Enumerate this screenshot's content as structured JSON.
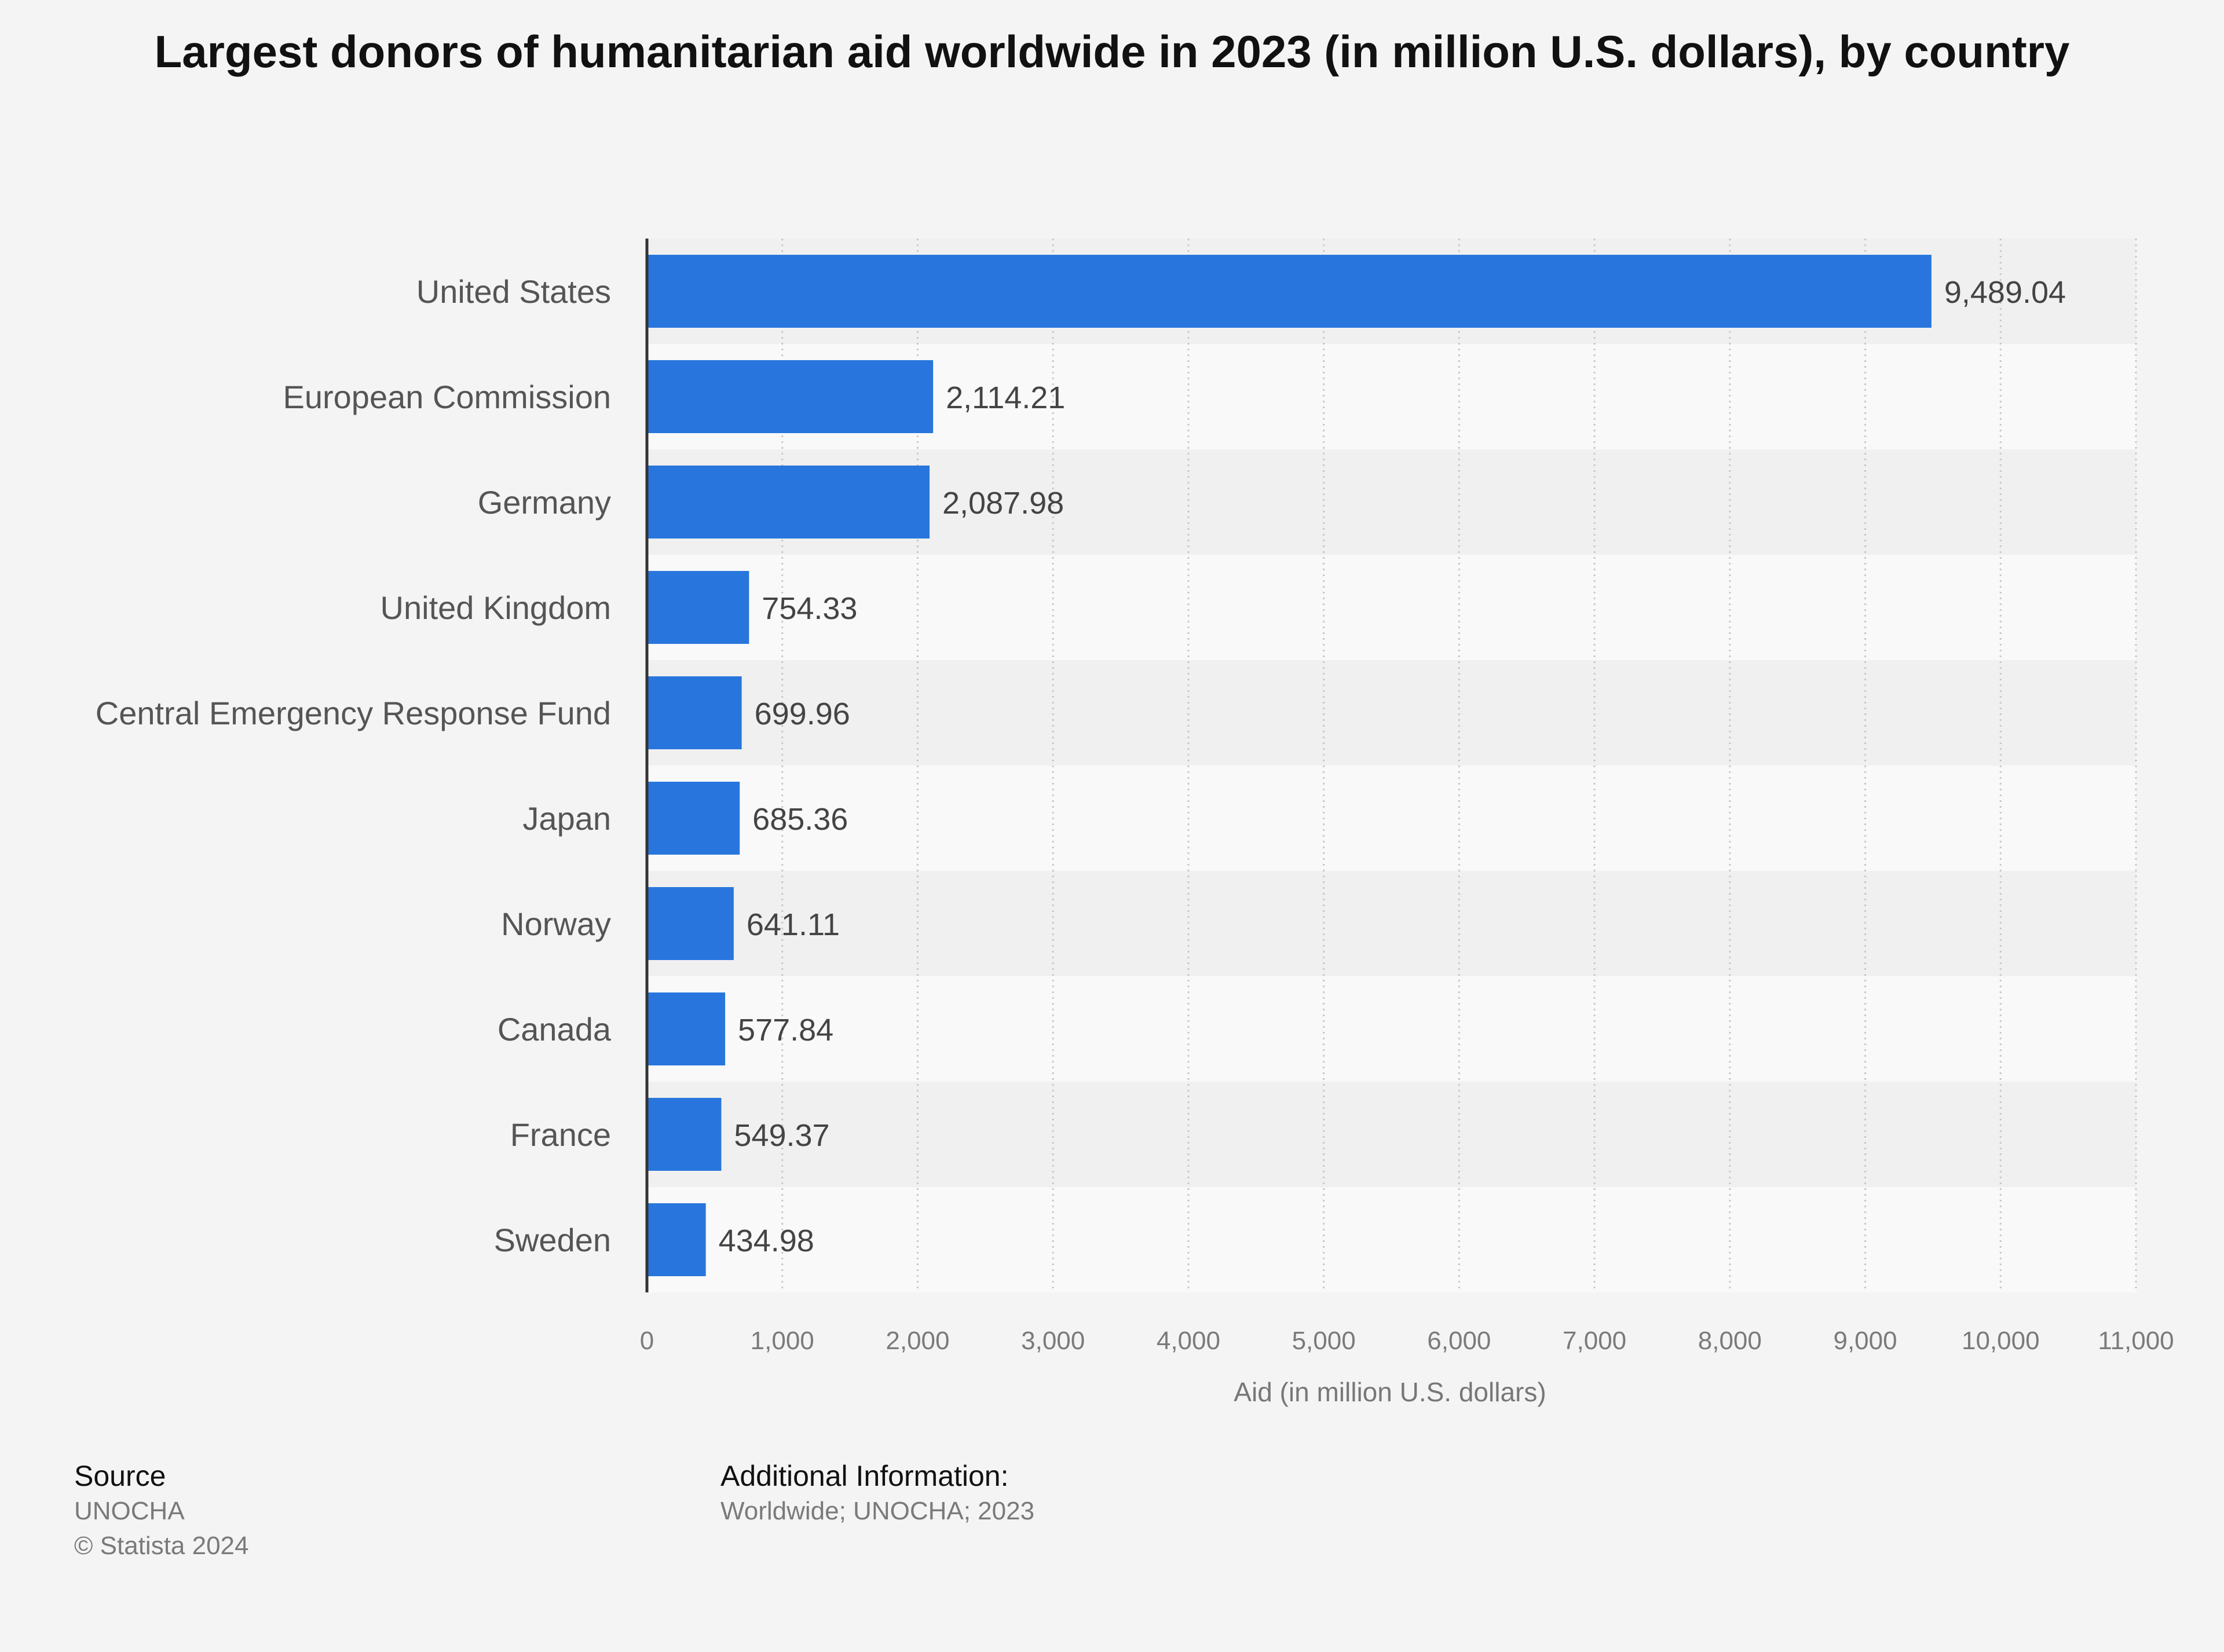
{
  "chart_data": {
    "type": "bar",
    "orientation": "horizontal",
    "title": "Largest donors of humanitarian aid worldwide in 2023 (in million U.S. dollars), by country",
    "categories": [
      "United States",
      "European Commission",
      "Germany",
      "United Kingdom",
      "Central Emergency Response Fund",
      "Japan",
      "Norway",
      "Canada",
      "France",
      "Sweden"
    ],
    "values": [
      9489.04,
      2114.21,
      2087.98,
      754.33,
      699.96,
      685.36,
      641.11,
      577.84,
      549.37,
      434.98
    ],
    "value_labels": [
      "9,489.04",
      "2,114.21",
      "2,087.98",
      "754.33",
      "699.96",
      "685.36",
      "641.11",
      "577.84",
      "549.37",
      "434.98"
    ],
    "xlabel": "Aid (in million U.S. dollars)",
    "ylabel": "",
    "xlim": [
      0,
      11000
    ],
    "ticks": [
      0,
      1000,
      2000,
      3000,
      4000,
      5000,
      6000,
      7000,
      8000,
      9000,
      10000,
      11000
    ],
    "tick_labels": [
      "0",
      "1,000",
      "2,000",
      "3,000",
      "4,000",
      "5,000",
      "6,000",
      "7,000",
      "8,000",
      "9,000",
      "10,000",
      "11,000"
    ],
    "grid": true,
    "bar_color": "#2876dd"
  },
  "footer": {
    "source_heading": "Source",
    "source_name": "UNOCHA",
    "copyright": "© Statista 2024",
    "additional_heading": "Additional Information:",
    "additional_text": "Worldwide; UNOCHA; 2023"
  }
}
